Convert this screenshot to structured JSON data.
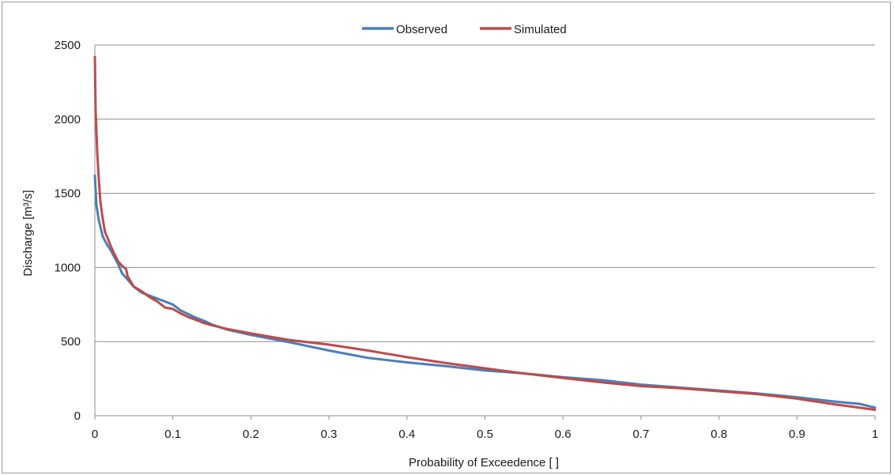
{
  "chart_data": {
    "type": "line",
    "title": "",
    "xlabel": "Probability of Exceedence [ ]",
    "ylabel": "Discharge [m³/s]",
    "xlim": [
      0,
      1
    ],
    "ylim": [
      0,
      2500
    ],
    "x_ticks": [
      "0",
      "0.1",
      "0.2",
      "0.3",
      "0.4",
      "0.5",
      "0.6",
      "0.7",
      "0.8",
      "0.9",
      "1"
    ],
    "y_ticks": [
      "0",
      "500",
      "1000",
      "1500",
      "2000",
      "2500"
    ],
    "grid": "horizontal",
    "legend_position": "top-center",
    "series": [
      {
        "name": "Observed",
        "color": "#4a7ebb",
        "points": [
          [
            0,
            1620
          ],
          [
            0.002,
            1420
          ],
          [
            0.005,
            1320
          ],
          [
            0.01,
            1210
          ],
          [
            0.015,
            1160
          ],
          [
            0.02,
            1120
          ],
          [
            0.025,
            1070
          ],
          [
            0.03,
            1020
          ],
          [
            0.035,
            960
          ],
          [
            0.04,
            930
          ],
          [
            0.045,
            900
          ],
          [
            0.05,
            870
          ],
          [
            0.06,
            830
          ],
          [
            0.07,
            810
          ],
          [
            0.08,
            790
          ],
          [
            0.09,
            770
          ],
          [
            0.1,
            750
          ],
          [
            0.11,
            710
          ],
          [
            0.12,
            685
          ],
          [
            0.13,
            660
          ],
          [
            0.14,
            640
          ],
          [
            0.15,
            615
          ],
          [
            0.17,
            580
          ],
          [
            0.2,
            545
          ],
          [
            0.25,
            495
          ],
          [
            0.3,
            440
          ],
          [
            0.35,
            390
          ],
          [
            0.4,
            360
          ],
          [
            0.45,
            335
          ],
          [
            0.5,
            305
          ],
          [
            0.55,
            285
          ],
          [
            0.6,
            260
          ],
          [
            0.65,
            240
          ],
          [
            0.7,
            210
          ],
          [
            0.75,
            190
          ],
          [
            0.8,
            170
          ],
          [
            0.85,
            150
          ],
          [
            0.9,
            125
          ],
          [
            0.95,
            95
          ],
          [
            0.98,
            80
          ],
          [
            1.0,
            55
          ]
        ]
      },
      {
        "name": "Simulated",
        "color": "#be4b48",
        "points": [
          [
            0,
            2420
          ],
          [
            0.001,
            2050
          ],
          [
            0.003,
            1780
          ],
          [
            0.005,
            1600
          ],
          [
            0.007,
            1450
          ],
          [
            0.01,
            1330
          ],
          [
            0.013,
            1240
          ],
          [
            0.017,
            1190
          ],
          [
            0.02,
            1150
          ],
          [
            0.025,
            1090
          ],
          [
            0.03,
            1040
          ],
          [
            0.035,
            1010
          ],
          [
            0.04,
            990
          ],
          [
            0.042,
            940
          ],
          [
            0.05,
            870
          ],
          [
            0.06,
            840
          ],
          [
            0.07,
            800
          ],
          [
            0.08,
            770
          ],
          [
            0.09,
            730
          ],
          [
            0.1,
            720
          ],
          [
            0.11,
            690
          ],
          [
            0.12,
            665
          ],
          [
            0.13,
            645
          ],
          [
            0.14,
            625
          ],
          [
            0.15,
            610
          ],
          [
            0.17,
            585
          ],
          [
            0.2,
            555
          ],
          [
            0.25,
            510
          ],
          [
            0.3,
            480
          ],
          [
            0.35,
            440
          ],
          [
            0.4,
            395
          ],
          [
            0.45,
            355
          ],
          [
            0.5,
            320
          ],
          [
            0.55,
            285
          ],
          [
            0.6,
            255
          ],
          [
            0.65,
            225
          ],
          [
            0.7,
            200
          ],
          [
            0.75,
            185
          ],
          [
            0.8,
            165
          ],
          [
            0.85,
            145
          ],
          [
            0.9,
            115
          ],
          [
            0.95,
            75
          ],
          [
            0.98,
            55
          ],
          [
            1.0,
            40
          ]
        ]
      }
    ]
  }
}
